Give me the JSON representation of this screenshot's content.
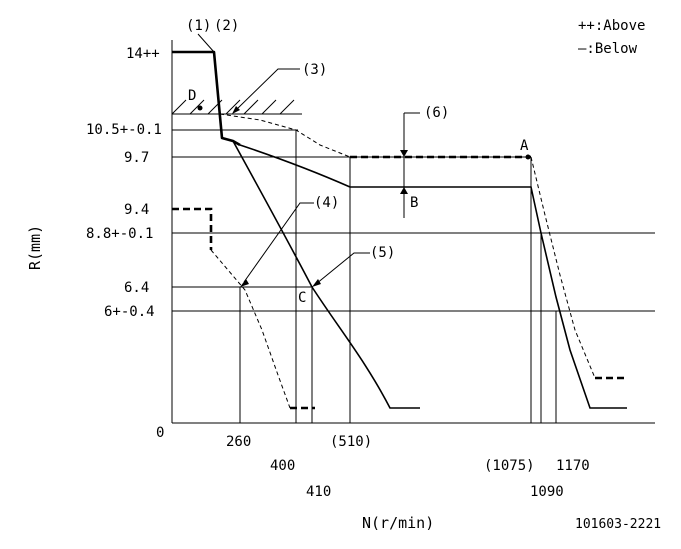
{
  "legend": {
    "above": "++:Above",
    "below": "—:Below"
  },
  "axis": {
    "y_label": "R(mm)",
    "x_label": "N(r/min)",
    "origin": "0"
  },
  "y_ticks": {
    "t14": "14++",
    "t105": "10.5+-0.1",
    "t97": "9.7",
    "t94": "9.4",
    "t88": "8.8+-0.1",
    "t64": "6.4",
    "t6": "6+-0.4"
  },
  "x_ticks": {
    "t260": "260",
    "t400": "400",
    "t410": "410",
    "t510": "(510)",
    "t1075": "(1075)",
    "t1090": "1090",
    "t1170": "1170"
  },
  "callouts": {
    "c1": "(1)",
    "c2": "(2)",
    "c3": "(3)",
    "c4": "(4)",
    "c5": "(5)",
    "c6": "(6)"
  },
  "points": {
    "A": "A",
    "B": "B",
    "C": "C",
    "D": "D"
  },
  "code": "101603-2221"
}
